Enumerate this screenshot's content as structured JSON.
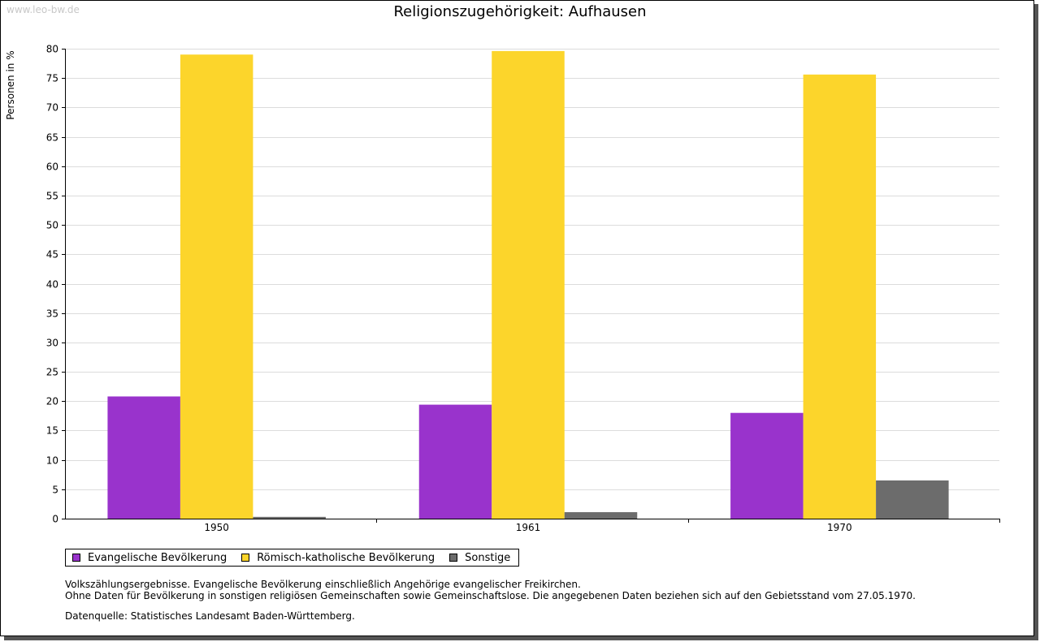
{
  "watermark": "www.leo-bw.de",
  "chart_data": {
    "type": "bar",
    "title": "Religionszugehörigkeit: Aufhausen",
    "xlabel": "",
    "ylabel": "Personen in %",
    "ylim": [
      0,
      80
    ],
    "ytick_step": 5,
    "categories": [
      "1950",
      "1961",
      "1970"
    ],
    "series": [
      {
        "name": "Evangelische Bevölkerung",
        "color": "#9933cc",
        "values": [
          20.8,
          19.4,
          18.0
        ]
      },
      {
        "name": "Römisch-katholische Bevölkerung",
        "color": "#fcd52b",
        "values": [
          79.0,
          79.6,
          75.6
        ]
      },
      {
        "name": "Sonstige",
        "color": "#6c6c6c",
        "values": [
          0.3,
          1.1,
          6.5
        ]
      }
    ],
    "grid": true,
    "legend_position": "bottom-left"
  },
  "notes": [
    "Volkszählungsergebnisse. Evangelische Bevölkerung einschließlich Angehörige evangelischer Freikirchen.",
    "Ohne Daten für Bevölkerung in sonstigen religiösen Gemeinschaften sowie Gemeinschaftslose. Die angegebenen Daten beziehen sich auf den Gebietsstand vom 27.05.1970."
  ],
  "source": "Datenquelle: Statistisches Landesamt Baden-Württemberg."
}
